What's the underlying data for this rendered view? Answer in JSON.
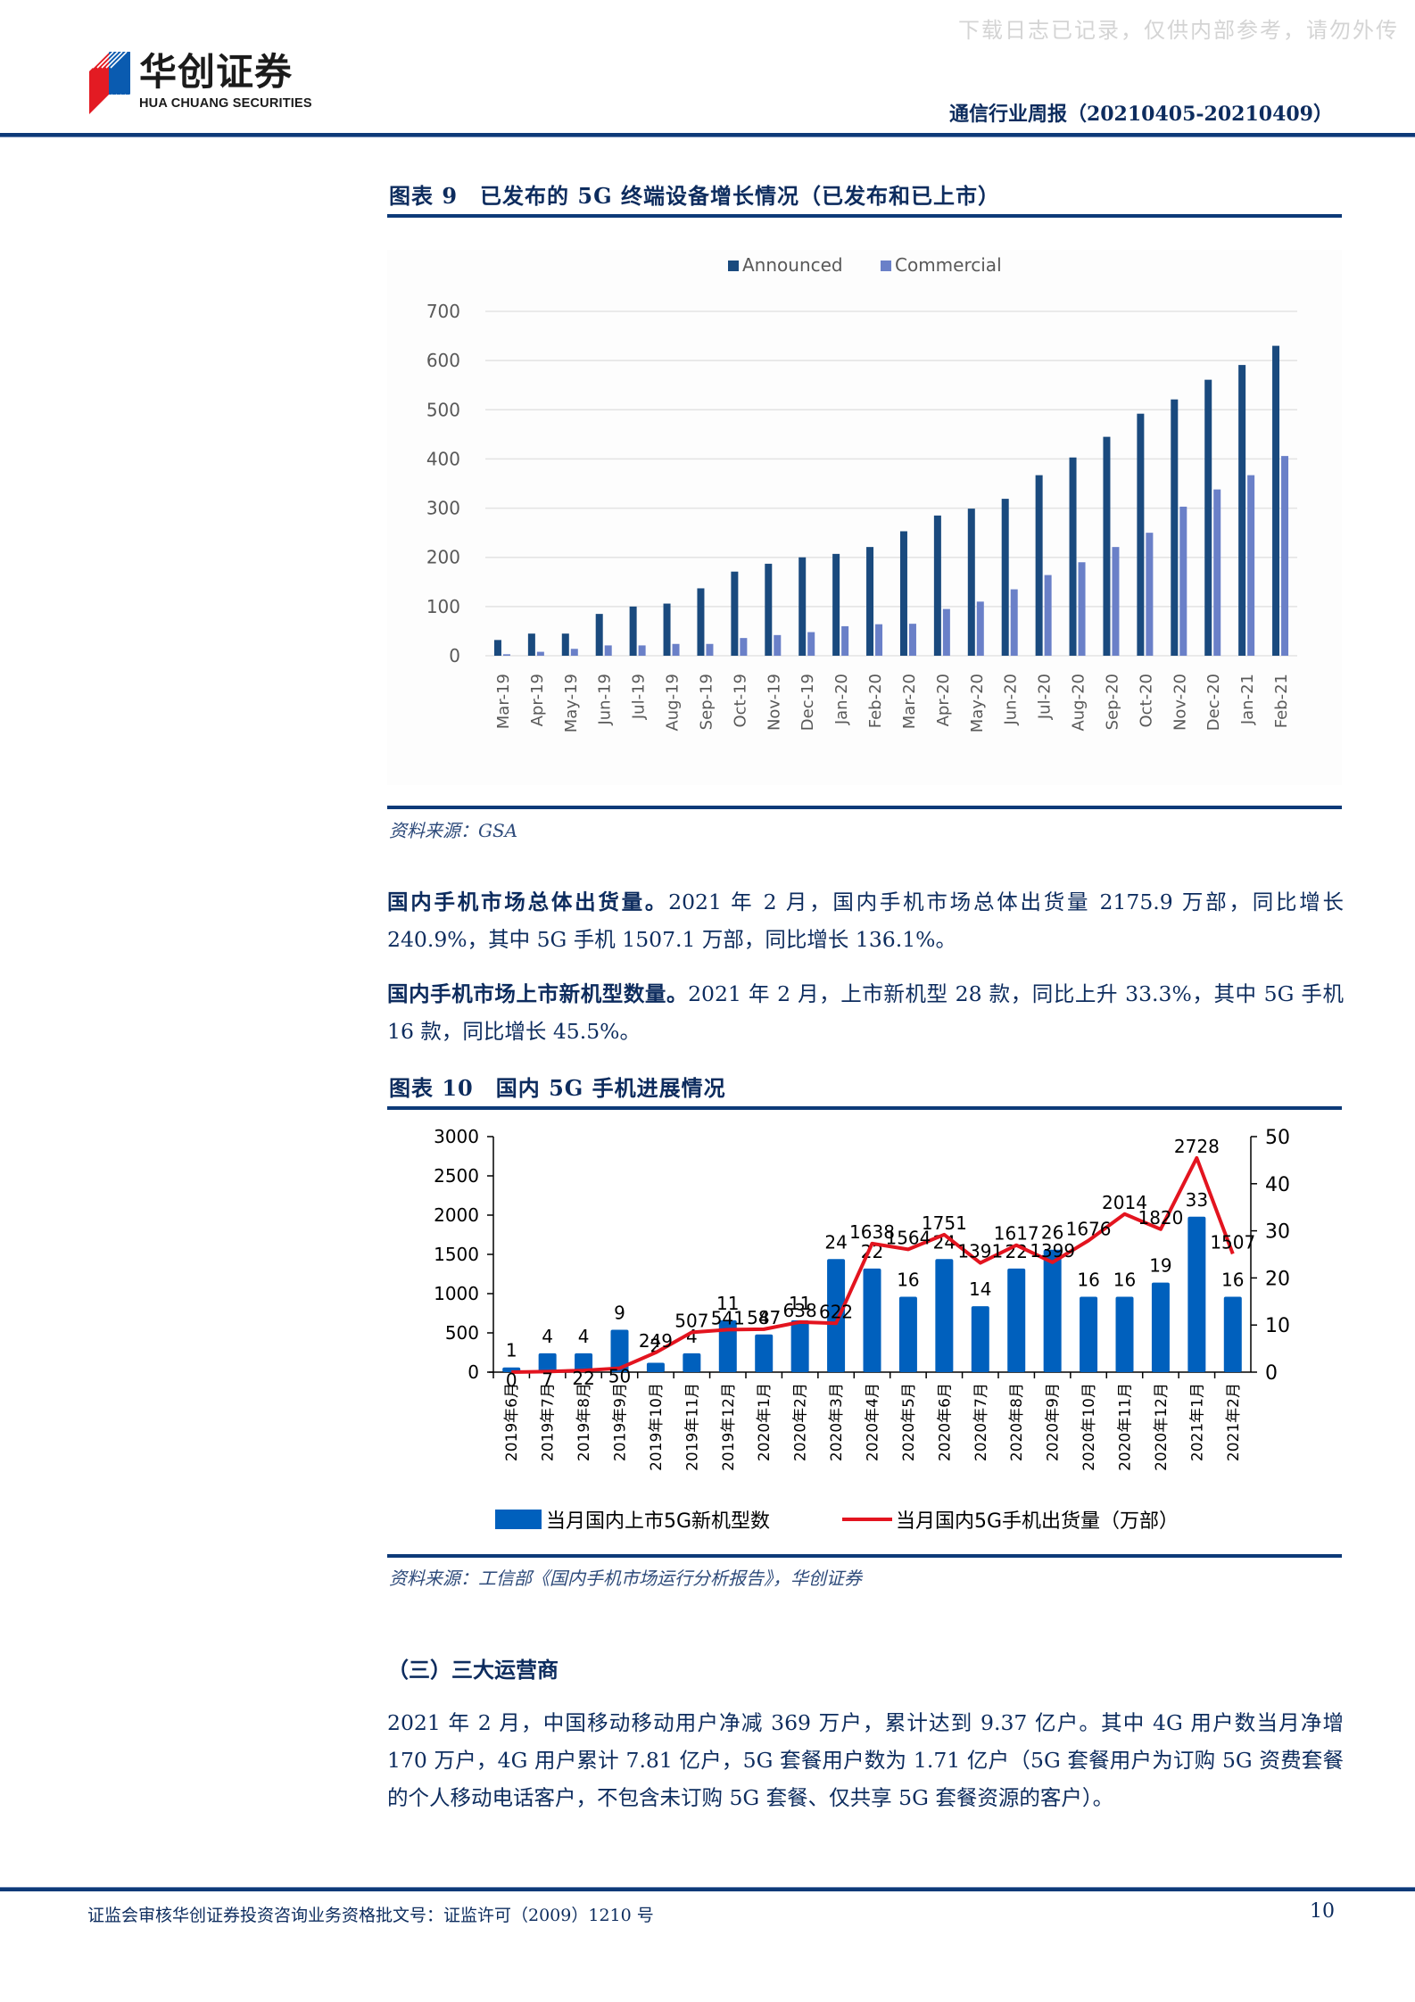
{
  "watermark": "下载日志已记录，仅供内部参考，请勿外传",
  "header": {
    "logo_cn": "华创证券",
    "logo_en": "HUA CHUANG SECURITIES",
    "report_title": "通信行业周报（20210405-20210409）"
  },
  "figure9": {
    "title": "图表 9　已发布的 5G 终端设备增长情况（已发布和已上市）",
    "source": "资料来源：GSA"
  },
  "paragraphs": [
    {
      "lead": "国内手机市场总体出货量。",
      "text": "2021 年 2 月，国内手机市场总体出货量 2175.9 万部，同比增长 240.9%，其中 5G 手机 1507.1 万部，同比增长 136.1%。"
    },
    {
      "lead": "国内手机市场上市新机型数量。",
      "text": "2021 年 2 月，上市新机型 28 款，同比上升 33.3%，其中 5G 手机 16 款，同比增长 45.5%。"
    }
  ],
  "figure10": {
    "title": "图表 10　国内 5G 手机进展情况",
    "source": "资料来源：工信部《国内手机市场运行分析报告》，华创证券"
  },
  "section": {
    "title": "（三）三大运营商",
    "text": "2021 年 2 月，中国移动移动用户净减 369 万户，累计达到 9.37 亿户。其中 4G 用户数当月净增 170 万户，4G 用户累计 7.81 亿户，5G 套餐用户数为 1.71 亿户（5G 套餐用户为订购 5G 资费套餐的个人移动电话客户，不包含未订购 5G 套餐、仅共享 5G 套餐资源的客户）。"
  },
  "footer": {
    "text": "证监会审核华创证券投资咨询业务资格批文号：证监许可（2009）1210 号",
    "page": "10"
  },
  "chart_data": [
    {
      "type": "bar",
      "title": "已发布的 5G 终端设备增长情况（已发布和已上市）",
      "xlabel": "",
      "ylabel": "",
      "ylim": [
        0,
        700
      ],
      "yticks": [
        0,
        100,
        200,
        300,
        400,
        500,
        600,
        700
      ],
      "grid": true,
      "legend_position": "top",
      "colors": {
        "Announced": "#1a4a7e",
        "Commercial": "#6a80c8"
      },
      "categories": [
        "Mar-19",
        "Apr-19",
        "May-19",
        "Jun-19",
        "Jul-19",
        "Aug-19",
        "Sep-19",
        "Oct-19",
        "Nov-19",
        "Dec-19",
        "Jan-20",
        "Feb-20",
        "Mar-20",
        "Apr-20",
        "May-20",
        "Jun-20",
        "Jul-20",
        "Aug-20",
        "Sep-20",
        "Oct-20",
        "Nov-20",
        "Dec-20",
        "Jan-21",
        "Feb-21"
      ],
      "series": [
        {
          "name": "Announced",
          "values": [
            32,
            45,
            45,
            85,
            100,
            106,
            137,
            171,
            187,
            200,
            207,
            221,
            253,
            285,
            299,
            319,
            367,
            403,
            445,
            492,
            521,
            561,
            591,
            630
          ]
        },
        {
          "name": "Commercial",
          "values": [
            3,
            8,
            14,
            21,
            21,
            24,
            24,
            36,
            42,
            48,
            60,
            64,
            65,
            95,
            110,
            135,
            164,
            190,
            221,
            250,
            303,
            338,
            367,
            406
          ]
        }
      ]
    },
    {
      "type": "bar+line",
      "title": "国内 5G 手机进展情况",
      "xlabel": "",
      "ylabel_left": "",
      "ylabel_right": "",
      "ylim_left": [
        0,
        3000
      ],
      "yticks_left": [
        0,
        500,
        1000,
        1500,
        2000,
        2500,
        3000
      ],
      "ylim_right": [
        0,
        50
      ],
      "yticks_right": [
        0,
        10,
        20,
        30,
        40,
        50
      ],
      "grid": false,
      "legend_position": "bottom",
      "colors": {
        "bar": "#0060bd",
        "line": "#e3141f"
      },
      "categories": [
        "2019年6月",
        "2019年7月",
        "2019年8月",
        "2019年9月",
        "2019年10月",
        "2019年11月",
        "2019年12月",
        "2020年1月",
        "2020年2月",
        "2020年3月",
        "2020年4月",
        "2020年5月",
        "2020年6月",
        "2020年7月",
        "2020年8月",
        "2020年9月",
        "2020年10月",
        "2020年11月",
        "2020年12月",
        "2021年1月",
        "2021年2月"
      ],
      "series": [
        {
          "name": "当月国内上市5G新机型数",
          "type": "bar",
          "axis": "right",
          "values": [
            1,
            4,
            4,
            9,
            2,
            4,
            11,
            8,
            11,
            24,
            22,
            16,
            24,
            14,
            22,
            26,
            16,
            16,
            19,
            33,
            16
          ]
        },
        {
          "name": "当月国内5G手机出货量（万部）",
          "type": "line",
          "axis": "left",
          "values": [
            0,
            7,
            22,
            50,
            249,
            507,
            541,
            547,
            638,
            622,
            1638,
            1564,
            1751,
            1391,
            1617,
            1399,
            1676,
            2014,
            1820,
            2728,
            1507
          ]
        }
      ]
    }
  ]
}
